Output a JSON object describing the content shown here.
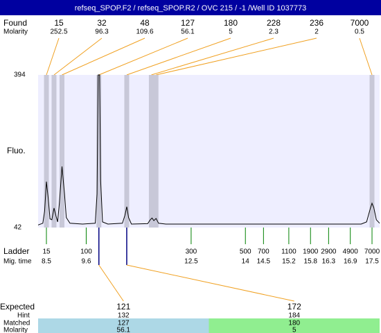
{
  "chart_data": {
    "type": "electropherogram",
    "title": "refseq_SPOP.F2 / refseq_SPOP.R2 / OVC 215 / -1 /Well ID 1037773",
    "found_label": "Found",
    "found_molarity_label": "Molarity",
    "found": [
      {
        "size": 15,
        "molarity": 252.5,
        "time": 8.5
      },
      {
        "size": 32,
        "molarity": 96.3,
        "time": 8.71
      },
      {
        "size": 48,
        "molarity": 109.6,
        "time": 8.93
      },
      {
        "size": 127,
        "molarity": 56.1,
        "time": 9.95
      },
      {
        "size": 180,
        "molarity": 5,
        "time": 10.72
      },
      {
        "size": 228,
        "molarity": 2.3,
        "time": 11.4
      },
      {
        "size": 236,
        "molarity": 2,
        "time": 11.53
      },
      {
        "size": 7000,
        "molarity": 0.5,
        "time": 17.5
      }
    ],
    "y_axis_label": "Fluo.",
    "ylim": [
      42,
      394
    ],
    "yticks": [
      42,
      394
    ],
    "xlim": [
      8.27,
      17.71
    ],
    "trace": {
      "x": [
        8.27,
        8.4,
        8.45,
        8.5,
        8.55,
        8.6,
        8.65,
        8.71,
        8.76,
        8.81,
        8.86,
        8.93,
        9.0,
        9.05,
        9.15,
        9.5,
        9.85,
        9.9,
        9.93,
        9.97,
        10.0,
        10.05,
        10.2,
        10.6,
        10.67,
        10.72,
        10.77,
        10.85,
        11.3,
        11.37,
        11.42,
        11.47,
        11.53,
        11.6,
        11.8,
        17.2,
        17.35,
        17.45,
        17.5,
        17.55,
        17.62,
        17.71
      ],
      "y": [
        48,
        52,
        80,
        148,
        110,
        62,
        60,
        87,
        70,
        55,
        100,
        183,
        120,
        65,
        52,
        50,
        52,
        120,
        394,
        394,
        150,
        55,
        50,
        52,
        70,
        90,
        65,
        50,
        51,
        60,
        64,
        58,
        63,
        52,
        50,
        50,
        55,
        85,
        98,
        88,
        60,
        52
      ]
    },
    "ladder_label": "Ladder",
    "mig_time_label": "Mig. time",
    "ladder": [
      {
        "size": 15,
        "time": 8.5
      },
      {
        "size": 100,
        "time": 9.6
      },
      {
        "size": 300,
        "time": 12.5
      },
      {
        "size": 500,
        "time": 14
      },
      {
        "size": 700,
        "time": 14.5
      },
      {
        "size": 1100,
        "time": 15.2
      },
      {
        "size": 1900,
        "time": 15.8
      },
      {
        "size": 2900,
        "time": 16.3
      },
      {
        "size": 4900,
        "time": 16.9
      },
      {
        "size": 7000,
        "time": 17.5
      }
    ],
    "expected_label": "Expected",
    "hint_label": "Hint",
    "matched_label": "Matched",
    "matched_molarity_label": "Molarity",
    "expected": [
      {
        "expected": 121,
        "hint": 132,
        "matched": 127,
        "molarity": 56.1
      },
      {
        "expected": 172,
        "hint": 184,
        "matched": 180,
        "molarity": 5
      }
    ]
  }
}
